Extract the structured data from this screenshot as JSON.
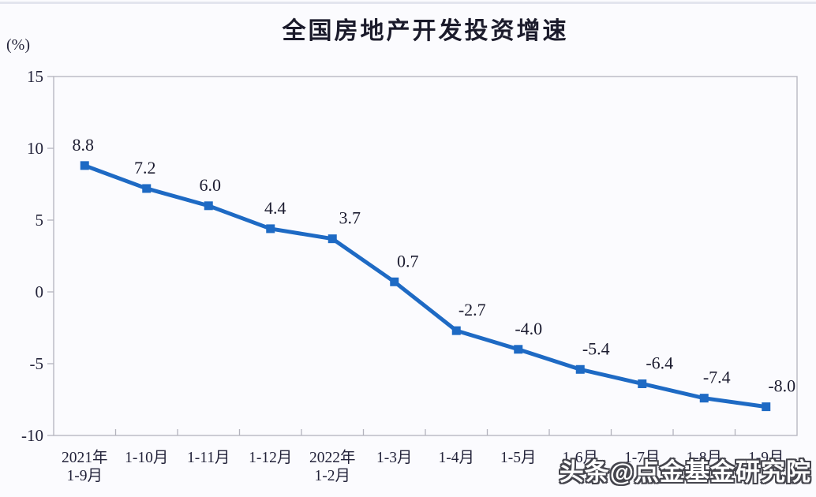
{
  "watermark": {
    "text": "头条@点金基金研究院"
  },
  "chart_data": {
    "type": "line",
    "title": "全国房地产开发投资增速",
    "ylabel": "(%)",
    "xlabel": "",
    "categories": [
      "2021年\n1-9月",
      "1-10月",
      "1-11月",
      "1-12月",
      "2022年\n1-2月",
      "1-3月",
      "1-4月",
      "1-5月",
      "1-6月",
      "1-7月",
      "1-8月",
      "1-9月"
    ],
    "values": [
      8.8,
      7.2,
      6.0,
      4.4,
      3.7,
      0.7,
      -2.7,
      -4.0,
      -5.4,
      -6.4,
      -7.4,
      -8.0
    ],
    "ylim": [
      -10,
      15
    ],
    "yticks": [
      15,
      10,
      5,
      0,
      -5,
      -10
    ],
    "grid": false,
    "legend": "none",
    "data_labels": true,
    "line_color": "#1e6ac4",
    "marker_style": "square",
    "text_color": "#23233a",
    "axis_color": "#b3b3bd",
    "label_dx": [
      -2,
      -2,
      2,
      6,
      22,
      17,
      20,
      13,
      20,
      22,
      16,
      20
    ]
  }
}
